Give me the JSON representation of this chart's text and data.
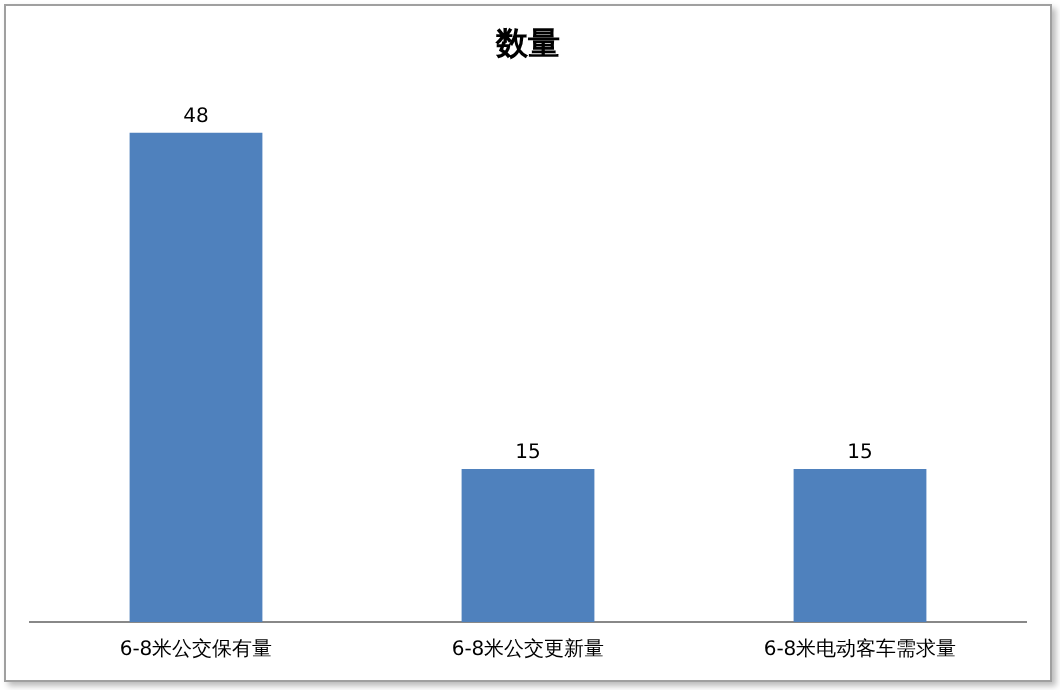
{
  "chart_data": {
    "type": "bar",
    "title": "数量",
    "categories": [
      "6-8米公交保有量",
      "6-8米公交更新量",
      "6-8米电动客车需求量"
    ],
    "values": [
      48,
      15,
      15
    ],
    "color": "#4f81bd",
    "data_labels": true,
    "grid": false,
    "legend": false
  }
}
